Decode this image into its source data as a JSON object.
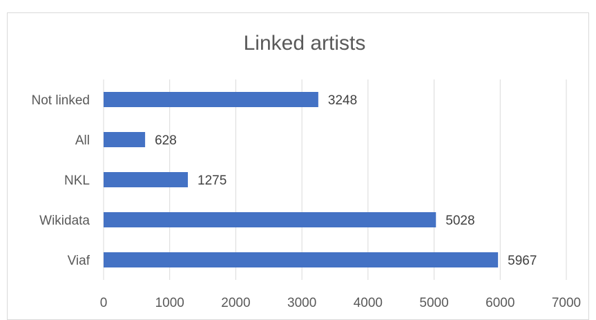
{
  "colors": {
    "bar": "#4472C4",
    "grid": "#d9d9d9",
    "text": "#595959",
    "border": "#d9d9d9"
  },
  "chart_data": {
    "type": "bar",
    "orientation": "horizontal",
    "title": "Linked artists",
    "xlabel": "",
    "ylabel": "",
    "categories": [
      "Not linked",
      "All",
      "NKL",
      "Wikidata",
      "Viaf"
    ],
    "values": [
      3248,
      628,
      1275,
      5028,
      5967
    ],
    "xlim": [
      0,
      7000
    ],
    "xticks": [
      0,
      1000,
      2000,
      3000,
      4000,
      5000,
      6000,
      7000
    ],
    "grid": "vertical",
    "legend": "none",
    "data_labels": true
  }
}
